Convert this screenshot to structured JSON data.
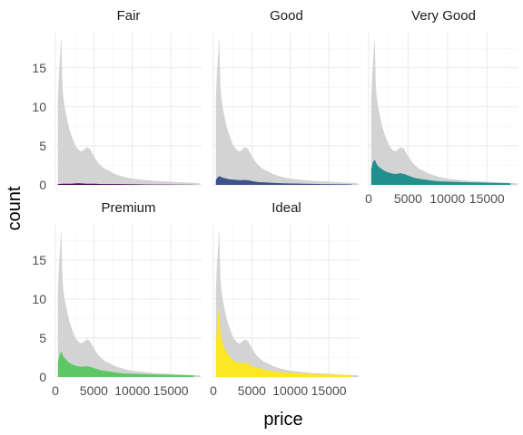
{
  "chart_data": {
    "type": "area",
    "layout": "facet_wrap, 3 columns",
    "title": "",
    "xlabel": "price",
    "ylabel": "count",
    "xlim": [
      0,
      19000
    ],
    "ylim": [
      0,
      19.5
    ],
    "x_ticks": [
      0,
      5000,
      10000,
      15000
    ],
    "y_ticks": [
      0,
      5,
      10,
      15
    ],
    "grid": true,
    "background_series": {
      "color": "#d3d3d3",
      "x": [
        326,
        450,
        550,
        650,
        700,
        750,
        800,
        850,
        900,
        1000,
        1200,
        1500,
        1800,
        2200,
        2600,
        3000,
        3300,
        3600,
        3900,
        4200,
        4500,
        4800,
        5200,
        5600,
        6000,
        6500,
        7000,
        7500,
        8000,
        9000,
        10000,
        11000,
        12000,
        13000,
        14000,
        15000,
        16000,
        17000,
        18000,
        18823
      ],
      "values": [
        11.0,
        14.0,
        15.5,
        17.0,
        18.5,
        18.8,
        17.5,
        15.0,
        13.0,
        11.5,
        10.0,
        8.5,
        7.2,
        6.0,
        5.0,
        4.5,
        4.3,
        4.4,
        4.7,
        4.8,
        4.6,
        4.0,
        3.4,
        2.8,
        2.4,
        2.0,
        1.8,
        1.5,
        1.3,
        1.0,
        0.8,
        0.7,
        0.6,
        0.5,
        0.45,
        0.4,
        0.35,
        0.3,
        0.25,
        0.2
      ]
    },
    "panels": [
      {
        "name": "Fair",
        "color": "#440154",
        "x": [
          326,
          1000,
          2000,
          3000,
          4000,
          5000,
          6000,
          7500,
          9000,
          10500,
          12000,
          14000,
          16000,
          18000
        ],
        "values": [
          0.1,
          0.15,
          0.15,
          0.2,
          0.15,
          0.15,
          0.1,
          0.1,
          0.08,
          0.07,
          0.05,
          0.04,
          0.03,
          0.02
        ]
      },
      {
        "name": "Good",
        "color": "#3b528b",
        "x": [
          326,
          500,
          700,
          850,
          1000,
          1300,
          1700,
          2200,
          2800,
          3400,
          4000,
          4500,
          5000,
          5500,
          6000,
          7000,
          8000,
          9000,
          10500,
          12000,
          14000,
          16000,
          18000
        ],
        "values": [
          0.6,
          0.9,
          1.1,
          1.1,
          1.0,
          0.9,
          0.8,
          0.7,
          0.65,
          0.6,
          0.62,
          0.6,
          0.5,
          0.4,
          0.35,
          0.3,
          0.25,
          0.2,
          0.18,
          0.15,
          0.1,
          0.08,
          0.06
        ]
      },
      {
        "name": "Very Good",
        "color": "#21908d",
        "x": [
          326,
          500,
          700,
          850,
          1000,
          1300,
          1700,
          2200,
          2800,
          3400,
          4000,
          4500,
          5000,
          5500,
          6000,
          7000,
          8000,
          9000,
          10500,
          12000,
          14000,
          16000,
          18000
        ],
        "values": [
          2.0,
          2.8,
          3.2,
          3.1,
          2.7,
          2.3,
          2.0,
          1.7,
          1.5,
          1.4,
          1.5,
          1.4,
          1.2,
          1.0,
          0.85,
          0.7,
          0.55,
          0.45,
          0.4,
          0.35,
          0.3,
          0.25,
          0.2
        ]
      },
      {
        "name": "Premium",
        "color": "#5dc863",
        "x": [
          326,
          500,
          700,
          850,
          1000,
          1300,
          1700,
          2200,
          2800,
          3400,
          4000,
          4500,
          5000,
          5500,
          6000,
          7000,
          8000,
          9000,
          10500,
          12000,
          14000,
          16000,
          18000
        ],
        "values": [
          1.8,
          2.7,
          3.2,
          3.1,
          2.7,
          2.3,
          1.9,
          1.6,
          1.4,
          1.3,
          1.4,
          1.3,
          1.15,
          1.0,
          0.85,
          0.7,
          0.55,
          0.45,
          0.4,
          0.35,
          0.3,
          0.25,
          0.2
        ]
      },
      {
        "name": "Ideal",
        "color": "#fde725",
        "x": [
          326,
          450,
          550,
          650,
          700,
          750,
          800,
          850,
          900,
          1000,
          1200,
          1500,
          1800,
          2200,
          2600,
          3000,
          3500,
          4000,
          4500,
          5000,
          6000,
          7000,
          8000,
          10000,
          12000,
          14000,
          16000,
          18000
        ],
        "values": [
          4.0,
          6.0,
          7.5,
          8.5,
          8.6,
          8.4,
          7.5,
          6.5,
          5.8,
          5.0,
          4.3,
          3.6,
          3.0,
          2.5,
          2.1,
          1.9,
          1.8,
          1.85,
          1.7,
          1.4,
          1.1,
          0.9,
          0.7,
          0.55,
          0.45,
          0.35,
          0.3,
          0.25
        ]
      }
    ]
  }
}
